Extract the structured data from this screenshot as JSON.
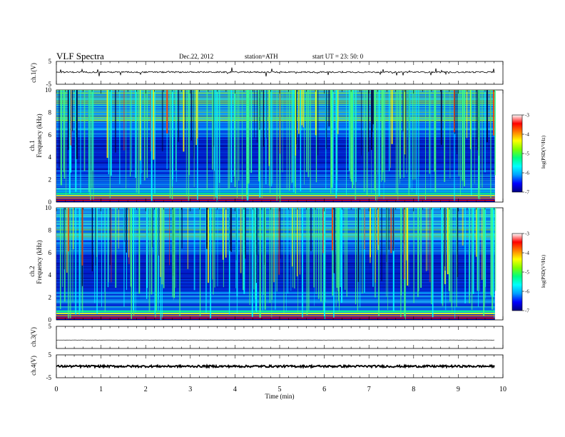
{
  "header": {
    "title": "VLF  Spectra",
    "date": "Dec.22, 2012",
    "station": "station=ATH",
    "start_ut": "start  UT  =    23: 50: 0"
  },
  "chart_data": [
    {
      "type": "line",
      "panel": "ch1-waveform",
      "ylabel": "ch.1(V)",
      "yticks": [
        "5",
        "-5"
      ],
      "ylim": [
        -5,
        5
      ],
      "xlim": [
        0,
        10
      ],
      "data_extent_min": [
        0,
        9.82
      ],
      "baseline": 0.3
    },
    {
      "type": "heatmap",
      "panel": "ch1-spectrogram",
      "ylabel": "ch.1\nFrequency  (kHz)",
      "ylabel_line1": "ch.1",
      "ylabel_line2": "Frequency  (kHz)",
      "yticks": [
        "0",
        "2",
        "4",
        "6",
        "8",
        "10"
      ],
      "ylim": [
        0,
        10
      ],
      "xlim": [
        0,
        10
      ],
      "data_extent_min": [
        0,
        9.82
      ],
      "colorbar": {
        "label": "log(PSD(V²/Hz)",
        "ticks": [
          "-3",
          "-4",
          "-5",
          "-6",
          "-7"
        ],
        "range": [
          -7,
          -3
        ]
      }
    },
    {
      "type": "heatmap",
      "panel": "ch2-spectrogram",
      "ylabel": "ch.2\nFrequency  (kHz)",
      "ylabel_line1": "ch.2",
      "ylabel_line2": "Frequency  (kHz)",
      "yticks": [
        "0",
        "2",
        "4",
        "6",
        "8",
        "10"
      ],
      "ylim": [
        0,
        10
      ],
      "xlim": [
        0,
        10
      ],
      "data_extent_min": [
        0,
        9.82
      ],
      "colorbar": {
        "label": "log(PSD(V²/Hz)",
        "ticks": [
          "-3",
          "-4",
          "-5",
          "-6",
          "-7"
        ],
        "range": [
          -7,
          -3
        ]
      }
    },
    {
      "type": "line",
      "panel": "ch3-waveform",
      "ylabel": "ch.3(V)",
      "yticks": [
        "5"
      ],
      "ylim": [
        -5,
        5
      ],
      "xlim": [
        0,
        10
      ],
      "baseline": -1.2
    },
    {
      "type": "line",
      "panel": "ch4-waveform",
      "ylabel": "ch.4(V)",
      "yticks": [
        "5",
        "-5"
      ],
      "ylim": [
        -5,
        5
      ],
      "xlim": [
        0,
        10
      ],
      "baseline": 0
    }
  ],
  "x_axis": {
    "label": "Time  (min)",
    "ticks": [
      "0",
      "1",
      "2",
      "3",
      "4",
      "5",
      "6",
      "7",
      "8",
      "9",
      "10"
    ],
    "range": [
      0,
      10
    ]
  },
  "colors": {
    "jet": [
      "#000080",
      "#0000ff",
      "#00a0ff",
      "#00ffff",
      "#00ff80",
      "#80ff00",
      "#ffff00",
      "#ff8000",
      "#ff0000",
      "#ffffff"
    ],
    "axis": "#000000"
  }
}
